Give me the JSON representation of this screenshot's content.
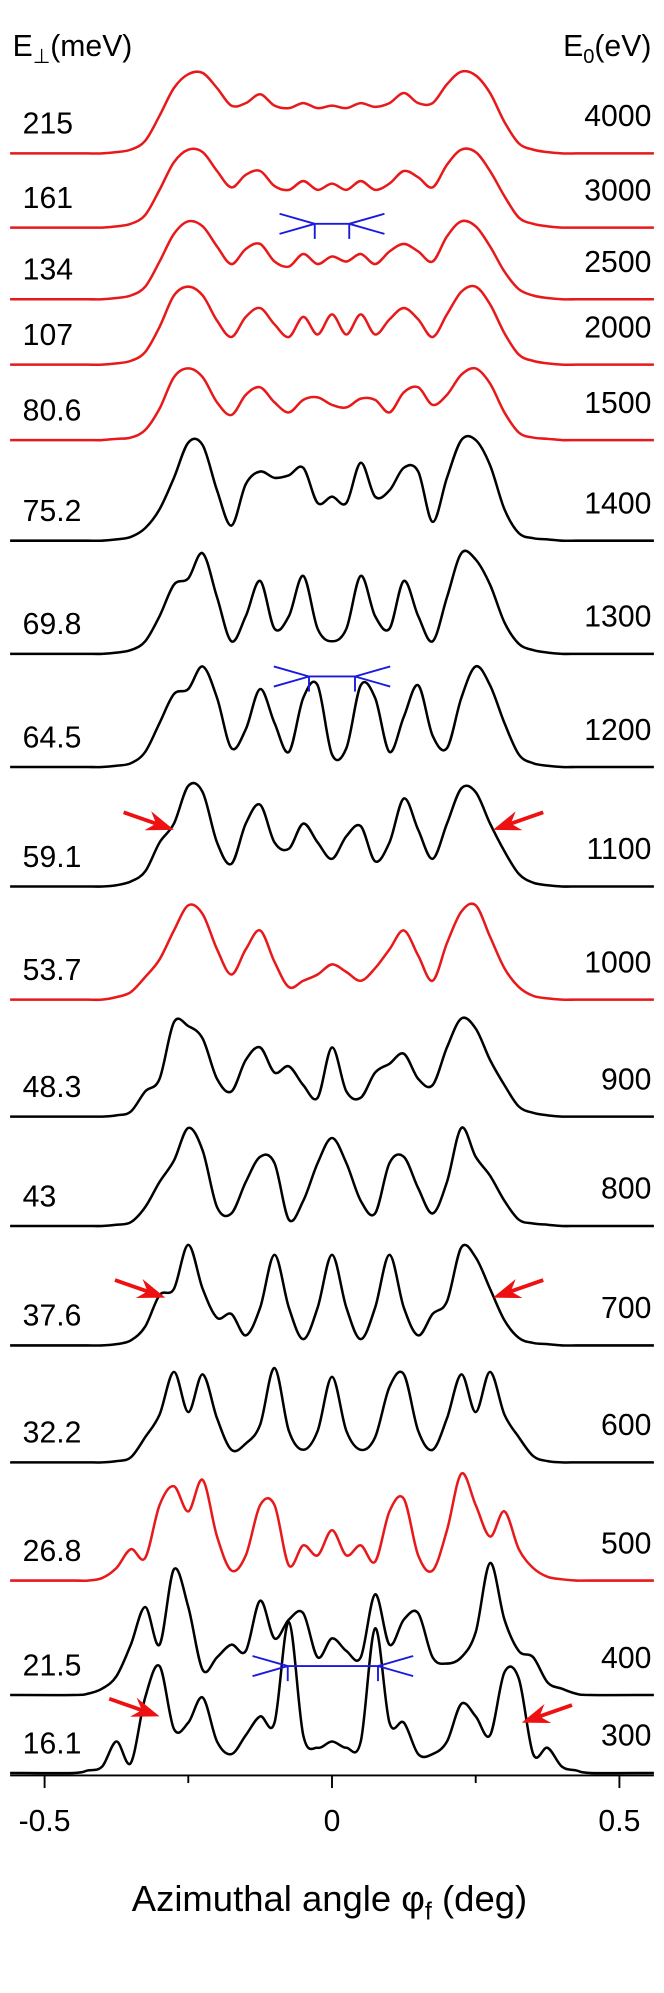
{
  "chart_data": {
    "type": "waterfall",
    "left_header": {
      "text": "E",
      "sub": "⊥",
      "rest": "(meV)"
    },
    "right_header": {
      "text": "E",
      "sub": "0",
      "rest": "(eV)"
    },
    "xlabel": {
      "text": "Azimuthal angle φ",
      "sub": "f",
      "rest": " (deg)"
    },
    "xlim": [
      -0.56,
      0.56
    ],
    "xticks": [
      -0.5,
      0,
      0.5
    ],
    "xminorticks": [
      -0.25,
      0.25
    ],
    "x": [
      -0.56,
      -0.45,
      -0.425,
      -0.4,
      -0.375,
      -0.35,
      -0.325,
      -0.3,
      -0.275,
      -0.25,
      -0.225,
      -0.2,
      -0.175,
      -0.15,
      -0.125,
      -0.1,
      -0.075,
      -0.05,
      -0.025,
      0,
      0.025,
      0.05,
      0.075,
      0.1,
      0.125,
      0.15,
      0.175,
      0.2,
      0.225,
      0.25,
      0.275,
      0.3,
      0.325,
      0.35,
      0.375,
      0.4,
      0.425,
      0.45,
      0.56
    ],
    "series": [
      {
        "e_perp": 215,
        "e0": 4000,
        "color": "#e8191b",
        "offset": 1290,
        "values": [
          0,
          0,
          0,
          0,
          1,
          3,
          10,
          30,
          52,
          63,
          64,
          52,
          38,
          40,
          47,
          38,
          36,
          40,
          36,
          38,
          36,
          40,
          37,
          40,
          48,
          40,
          40,
          55,
          65,
          62,
          48,
          25,
          8,
          3,
          1,
          0,
          0,
          0,
          0
        ]
      },
      {
        "e_perp": 161,
        "e0": 3000,
        "color": "#e8191b",
        "offset": 1231,
        "values": [
          0,
          0,
          0,
          0,
          1,
          3,
          10,
          30,
          52,
          62,
          60,
          45,
          32,
          42,
          45,
          33,
          30,
          37,
          30,
          35,
          30,
          37,
          30,
          35,
          45,
          40,
          32,
          50,
          62,
          60,
          45,
          25,
          8,
          3,
          1,
          0,
          0,
          0,
          0
        ]
      },
      {
        "e_perp": 134,
        "e0": 2500,
        "color": "#e8191b",
        "offset": 1174,
        "values": [
          0,
          0,
          0,
          0,
          1,
          3,
          10,
          30,
          52,
          62,
          58,
          42,
          28,
          40,
          44,
          30,
          26,
          36,
          28,
          34,
          30,
          36,
          28,
          38,
          44,
          38,
          30,
          50,
          62,
          58,
          42,
          22,
          8,
          3,
          1,
          0,
          0,
          0,
          0
        ]
      },
      {
        "e_perp": 107,
        "e0": 2000,
        "color": "#e8191b",
        "offset": 1122,
        "values": [
          0,
          0,
          0,
          0,
          1,
          3,
          10,
          30,
          55,
          62,
          55,
          35,
          22,
          38,
          45,
          32,
          22,
          38,
          24,
          40,
          24,
          40,
          24,
          36,
          45,
          36,
          22,
          40,
          58,
          62,
          48,
          25,
          8,
          3,
          1,
          0,
          0,
          0,
          0
        ]
      },
      {
        "e_perp": 80.6,
        "e0": 1500,
        "color": "#e8191b",
        "offset": 1062,
        "values": [
          0,
          0,
          0,
          0,
          1,
          2,
          8,
          25,
          50,
          57,
          50,
          30,
          20,
          36,
          42,
          30,
          22,
          32,
          34,
          28,
          26,
          33,
          32,
          22,
          38,
          42,
          28,
          36,
          52,
          57,
          45,
          22,
          6,
          2,
          1,
          0,
          0,
          0,
          0
        ]
      },
      {
        "e_perp": 75.2,
        "e0": 1400,
        "color": "#000000",
        "offset": 982,
        "values": [
          0,
          0,
          0,
          0,
          1,
          3,
          10,
          25,
          50,
          78,
          76,
          40,
          12,
          45,
          55,
          50,
          52,
          58,
          30,
          35,
          30,
          62,
          35,
          40,
          58,
          55,
          15,
          50,
          80,
          80,
          60,
          25,
          6,
          2,
          1,
          0,
          0,
          0,
          0
        ]
      },
      {
        "e_perp": 69.8,
        "e0": 1300,
        "color": "#000000",
        "offset": 892,
        "values": [
          0,
          0,
          0,
          0,
          1,
          3,
          10,
          30,
          55,
          60,
          80,
          45,
          10,
          30,
          58,
          20,
          30,
          62,
          20,
          10,
          20,
          62,
          30,
          20,
          58,
          30,
          10,
          45,
          80,
          75,
          55,
          25,
          8,
          3,
          1,
          0,
          0,
          0,
          0
        ]
      },
      {
        "e_perp": 64.5,
        "e0": 1200,
        "color": "#000000",
        "offset": 802,
        "values": [
          0,
          0,
          0,
          0,
          1,
          3,
          12,
          35,
          58,
          62,
          80,
          55,
          15,
          30,
          62,
          35,
          12,
          55,
          65,
          10,
          15,
          65,
          55,
          12,
          40,
          65,
          25,
          15,
          55,
          80,
          65,
          35,
          10,
          3,
          1,
          0,
          0,
          0,
          0
        ]
      },
      {
        "e_perp": 59.1,
        "e0": 1100,
        "color": "#000000",
        "offset": 707,
        "values": [
          0,
          0,
          0,
          0,
          1,
          4,
          12,
          35,
          50,
          80,
          75,
          35,
          18,
          50,
          65,
          35,
          30,
          50,
          35,
          22,
          40,
          48,
          20,
          35,
          70,
          45,
          22,
          50,
          78,
          75,
          50,
          28,
          10,
          3,
          1,
          0,
          0,
          0,
          0
        ]
      },
      {
        "e_perp": 53.7,
        "e0": 1000,
        "color": "#e8191b",
        "offset": 617,
        "values": [
          0,
          0,
          0,
          0,
          2,
          6,
          18,
          32,
          55,
          75,
          68,
          40,
          20,
          40,
          55,
          30,
          10,
          15,
          20,
          28,
          22,
          15,
          25,
          40,
          55,
          35,
          15,
          45,
          70,
          75,
          50,
          25,
          10,
          3,
          1,
          0,
          0,
          0,
          0
        ]
      },
      {
        "e_perp": 48.3,
        "e0": 900,
        "color": "#000000",
        "offset": 524,
        "values": [
          0,
          0,
          0,
          0,
          1,
          4,
          20,
          30,
          75,
          72,
          62,
          30,
          20,
          45,
          55,
          35,
          40,
          25,
          15,
          55,
          20,
          15,
          35,
          42,
          50,
          30,
          25,
          55,
          78,
          70,
          45,
          25,
          8,
          3,
          1,
          0,
          0,
          0,
          0
        ]
      },
      {
        "e_perp": 43,
        "e0": 800,
        "color": "#000000",
        "offset": 437,
        "values": [
          0,
          0,
          0,
          0,
          1,
          3,
          15,
          35,
          52,
          78,
          60,
          15,
          10,
          35,
          55,
          50,
          5,
          20,
          50,
          70,
          50,
          20,
          10,
          50,
          55,
          30,
          10,
          35,
          78,
          55,
          40,
          20,
          5,
          2,
          1,
          0,
          0,
          0,
          0
        ]
      },
      {
        "e_perp": 37.6,
        "e0": 700,
        "color": "#000000",
        "offset": 342,
        "values": [
          0,
          0,
          0,
          0,
          1,
          4,
          15,
          40,
          45,
          80,
          45,
          22,
          25,
          8,
          30,
          72,
          30,
          5,
          30,
          72,
          30,
          5,
          30,
          72,
          30,
          8,
          25,
          35,
          78,
          70,
          45,
          20,
          6,
          2,
          1,
          0,
          0,
          0,
          0
        ]
      },
      {
        "e_perp": 32.2,
        "e0": 600,
        "color": "#000000",
        "offset": 249,
        "values": [
          0,
          0,
          0,
          0,
          1,
          4,
          20,
          38,
          72,
          40,
          70,
          35,
          10,
          15,
          30,
          75,
          25,
          10,
          25,
          68,
          25,
          10,
          20,
          60,
          70,
          25,
          10,
          35,
          70,
          40,
          72,
          38,
          20,
          5,
          1,
          0,
          0,
          0,
          0
        ]
      },
      {
        "e_perp": 26.8,
        "e0": 500,
        "color": "#e8191b",
        "offset": 155,
        "values": [
          0,
          0,
          0,
          2,
          10,
          25,
          18,
          60,
          75,
          55,
          80,
          35,
          8,
          20,
          60,
          60,
          12,
          28,
          20,
          40,
          20,
          28,
          15,
          55,
          65,
          20,
          8,
          40,
          85,
          60,
          35,
          55,
          25,
          10,
          3,
          1,
          0,
          0,
          0
        ]
      },
      {
        "e_perp": 21.5,
        "e0": 400,
        "color": "#000000",
        "offset": 64,
        "values": [
          0,
          0,
          1,
          5,
          15,
          40,
          70,
          40,
          100,
          70,
          20,
          30,
          40,
          35,
          75,
          45,
          60,
          65,
          30,
          45,
          35,
          30,
          80,
          40,
          60,
          65,
          30,
          25,
          30,
          50,
          105,
          60,
          35,
          30,
          10,
          5,
          1,
          0,
          0
        ]
      },
      {
        "e_perp": 16.1,
        "e0": 300,
        "color": "#000000",
        "offset": 2,
        "values": [
          0,
          0,
          2,
          5,
          25,
          8,
          60,
          85,
          35,
          40,
          60,
          25,
          15,
          30,
          45,
          40,
          120,
          30,
          20,
          25,
          20,
          25,
          115,
          40,
          40,
          15,
          15,
          25,
          55,
          45,
          30,
          80,
          75,
          15,
          20,
          5,
          2,
          0,
          0
        ]
      }
    ],
    "marker_color": "#1a1adf",
    "markers": [
      {
        "series": 2,
        "x": [
          -0.03,
          0.03
        ],
        "level": 60
      },
      {
        "series": 7,
        "x": [
          -0.04,
          0.04
        ],
        "level": 72
      },
      {
        "series": 16,
        "x": [
          -0.077,
          0.08
        ],
        "level": 85
      }
    ],
    "arrow_color": "#ee1111",
    "arrows": [
      {
        "series": 8,
        "x": -0.275,
        "level": 45
      },
      {
        "series": 8,
        "x": 0.28,
        "level": 45
      },
      {
        "series": 12,
        "x": -0.29,
        "level": 38
      },
      {
        "series": 12,
        "x": 0.28,
        "level": 38
      },
      {
        "series": 16,
        "x": -0.3,
        "level": 45
      },
      {
        "series": 16,
        "x": 0.33,
        "level": 40
      }
    ]
  }
}
